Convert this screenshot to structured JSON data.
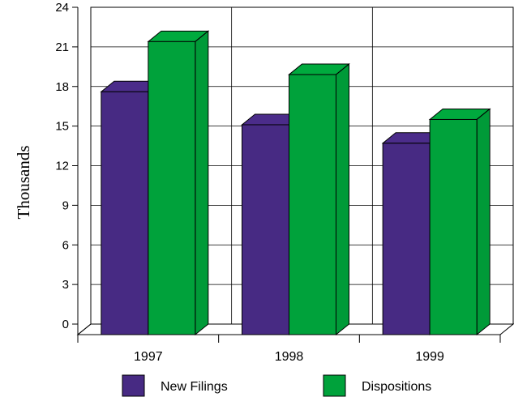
{
  "chart_data": {
    "type": "bar",
    "title": "",
    "xlabel": "",
    "ylabel": "Thousands",
    "categories": [
      "1997",
      "1998",
      "1999"
    ],
    "series": [
      {
        "name": "New Filings",
        "values": [
          18.4,
          15.9,
          14.5
        ],
        "color": "#472a83"
      },
      {
        "name": "Dispositions",
        "values": [
          22.2,
          19.7,
          16.3
        ],
        "color": "#00a23b"
      }
    ],
    "ylim": [
      0,
      24
    ],
    "yticks": [
      0,
      3,
      6,
      9,
      12,
      15,
      18,
      21,
      24
    ],
    "grid": true,
    "style": "3d",
    "legend_position": "bottom"
  }
}
